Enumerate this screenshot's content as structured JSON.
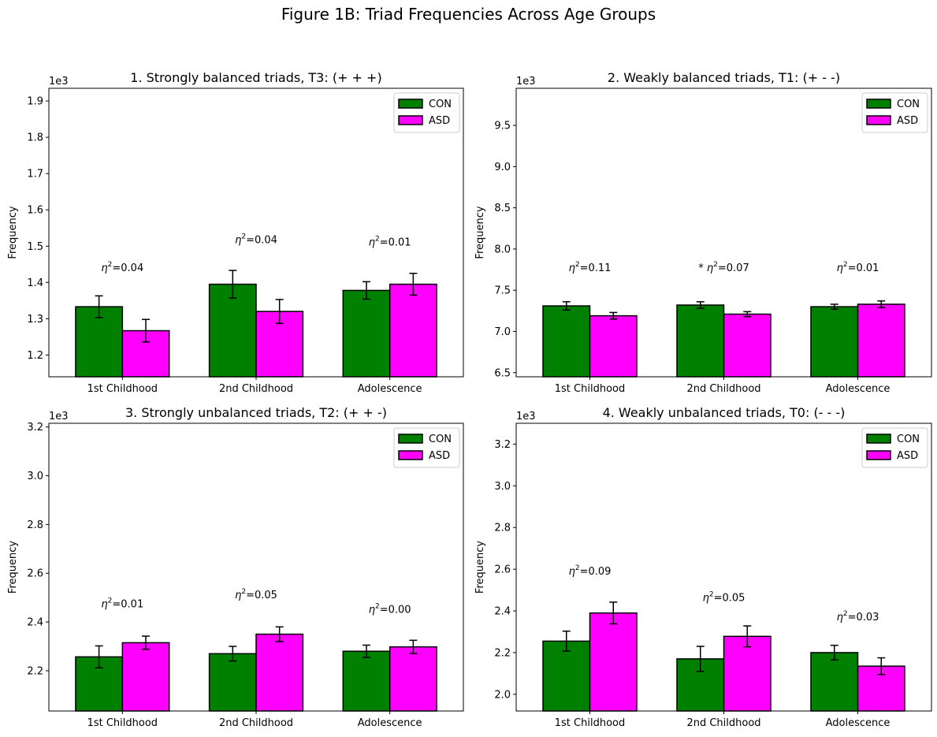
{
  "suptitle": "Figure 1B: Triad Frequencies Across Age Groups",
  "colors": {
    "CON": "#008000",
    "ASD": "#ff00ff",
    "edge": "#000000"
  },
  "chart_data": [
    {
      "type": "bar",
      "title": "1. Strongly balanced triads, T3: (+ + +)",
      "ylabel": "Frequency",
      "offset_text": "1e3",
      "ylim": [
        1.14,
        1.935
      ],
      "yticks": [
        1.2,
        1.3,
        1.4,
        1.5,
        1.6,
        1.7,
        1.8,
        1.9
      ],
      "ytick_labels": [
        "1.2",
        "1.3",
        "1.4",
        "1.5",
        "1.6",
        "1.7",
        "1.8",
        "1.9"
      ],
      "categories": [
        "1st Childhood",
        "2nd Childhood",
        "Adolescence"
      ],
      "series": [
        {
          "name": "CON",
          "values": [
            1.333,
            1.395,
            1.378
          ],
          "errors": [
            0.03,
            0.038,
            0.024
          ]
        },
        {
          "name": "ASD",
          "values": [
            1.267,
            1.32,
            1.395
          ],
          "errors": [
            0.031,
            0.033,
            0.03
          ]
        }
      ],
      "annotations": [
        {
          "label": "η²=0.04",
          "y": 1.44
        },
        {
          "label": "η²=0.04",
          "y": 1.517
        },
        {
          "label": "η²=0.01",
          "y": 1.51
        }
      ],
      "legend": "upper right"
    },
    {
      "type": "bar",
      "title": "2. Weakly balanced triads, T1: (+ - -)",
      "ylabel": "Frequency",
      "offset_text": "1e3",
      "ylim": [
        6.45,
        9.95
      ],
      "yticks": [
        6.5,
        7.0,
        7.5,
        8.0,
        8.5,
        9.0,
        9.5
      ],
      "ytick_labels": [
        "6.5",
        "7.0",
        "7.5",
        "8.0",
        "8.5",
        "9.0",
        "9.5"
      ],
      "categories": [
        "1st Childhood",
        "2nd Childhood",
        "Adolescence"
      ],
      "series": [
        {
          "name": "CON",
          "values": [
            7.31,
            7.32,
            7.3
          ],
          "errors": [
            0.05,
            0.04,
            0.03
          ]
        },
        {
          "name": "ASD",
          "values": [
            7.19,
            7.21,
            7.33
          ],
          "errors": [
            0.04,
            0.03,
            0.04
          ]
        }
      ],
      "annotations": [
        {
          "label": "η²=0.11",
          "y": 7.77
        },
        {
          "label": "* η²=0.07",
          "y": 7.77
        },
        {
          "label": "η²=0.01",
          "y": 7.77
        }
      ],
      "legend": "upper right"
    },
    {
      "type": "bar",
      "title": "3. Strongly unbalanced triads, T2: (+ + -)",
      "ylabel": "Frequency",
      "offset_text": "1e3",
      "ylim": [
        2.035,
        3.215
      ],
      "yticks": [
        2.2,
        2.4,
        2.6,
        2.8,
        3.0,
        3.2
      ],
      "ytick_labels": [
        "2.2",
        "2.4",
        "2.6",
        "2.8",
        "3.0",
        "3.2"
      ],
      "categories": [
        "1st Childhood",
        "2nd Childhood",
        "Adolescence"
      ],
      "series": [
        {
          "name": "CON",
          "values": [
            2.257,
            2.27,
            2.28
          ],
          "errors": [
            0.045,
            0.03,
            0.025
          ]
        },
        {
          "name": "ASD",
          "values": [
            2.315,
            2.35,
            2.298
          ],
          "errors": [
            0.027,
            0.03,
            0.027
          ]
        }
      ],
      "annotations": [
        {
          "label": "η²=0.01",
          "y": 2.473
        },
        {
          "label": "η²=0.05",
          "y": 2.511
        },
        {
          "label": "η²=0.00",
          "y": 2.45
        }
      ],
      "legend": "upper right"
    },
    {
      "type": "bar",
      "title": "4. Weakly unbalanced triads, T0: (- - -)",
      "ylabel": "Frequency",
      "offset_text": "1e3",
      "ylim": [
        1.92,
        3.3
      ],
      "yticks": [
        2.0,
        2.2,
        2.4,
        2.6,
        2.8,
        3.0,
        3.2
      ],
      "ytick_labels": [
        "2.0",
        "2.2",
        "2.4",
        "2.6",
        "2.8",
        "3.0",
        "3.2"
      ],
      "categories": [
        "1st Childhood",
        "2nd Childhood",
        "Adolescence"
      ],
      "series": [
        {
          "name": "CON",
          "values": [
            2.255,
            2.17,
            2.2
          ],
          "errors": [
            0.048,
            0.06,
            0.035
          ]
        },
        {
          "name": "ASD",
          "values": [
            2.39,
            2.278,
            2.135
          ],
          "errors": [
            0.052,
            0.05,
            0.04
          ]
        }
      ],
      "annotations": [
        {
          "label": "η²=0.09",
          "y": 2.59
        },
        {
          "label": "η²=0.05",
          "y": 2.462
        },
        {
          "label": "η²=0.03",
          "y": 2.37
        }
      ],
      "legend": "upper right"
    }
  ]
}
